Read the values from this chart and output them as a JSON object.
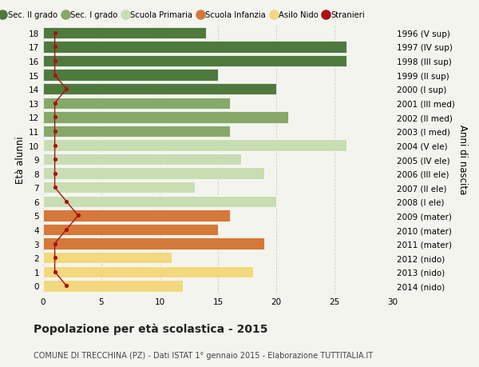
{
  "ages": [
    18,
    17,
    16,
    15,
    14,
    13,
    12,
    11,
    10,
    9,
    8,
    7,
    6,
    5,
    4,
    3,
    2,
    1,
    0
  ],
  "values": [
    14,
    26,
    26,
    15,
    20,
    16,
    21,
    16,
    26,
    17,
    19,
    13,
    20,
    16,
    15,
    19,
    11,
    18,
    12
  ],
  "right_labels": [
    "1996 (V sup)",
    "1997 (IV sup)",
    "1998 (III sup)",
    "1999 (II sup)",
    "2000 (I sup)",
    "2001 (III med)",
    "2002 (II med)",
    "2003 (I med)",
    "2004 (V ele)",
    "2005 (IV ele)",
    "2006 (III ele)",
    "2007 (II ele)",
    "2008 (I ele)",
    "2009 (mater)",
    "2010 (mater)",
    "2011 (mater)",
    "2012 (nido)",
    "2013 (nido)",
    "2014 (nido)"
  ],
  "bar_colors": [
    "#4e7a3e",
    "#4e7a3e",
    "#4e7a3e",
    "#4e7a3e",
    "#4e7a3e",
    "#86a96a",
    "#86a96a",
    "#86a96a",
    "#c9ddb2",
    "#c9ddb2",
    "#c9ddb2",
    "#c9ddb2",
    "#c9ddb2",
    "#d4793a",
    "#d4793a",
    "#d4793a",
    "#f2d87e",
    "#f2d87e",
    "#f2d87e"
  ],
  "legend_labels": [
    "Sec. II grado",
    "Sec. I grado",
    "Scuola Primaria",
    "Scuola Infanzia",
    "Asilo Nido",
    "Stranieri"
  ],
  "legend_colors": [
    "#4e7a3e",
    "#86a96a",
    "#c9ddb2",
    "#d4793a",
    "#f2d87e",
    "#aa1111"
  ],
  "title": "Popolazione per età scolastica - 2015",
  "subtitle": "COMUNE DI TRECCHINA (PZ) - Dati ISTAT 1° gennaio 2015 - Elaborazione TUTTITALIA.IT",
  "ylabel_left": "Età alunni",
  "ylabel_right": "Anni di nascita",
  "xlim": [
    0,
    30
  ],
  "bg_color": "#f4f4ef",
  "stranieri_color": "#aa1111",
  "stranieri_x": [
    1,
    1,
    1,
    1,
    2,
    1,
    1,
    1,
    1,
    1,
    1,
    1,
    2,
    3,
    2,
    1,
    1,
    1,
    2
  ]
}
